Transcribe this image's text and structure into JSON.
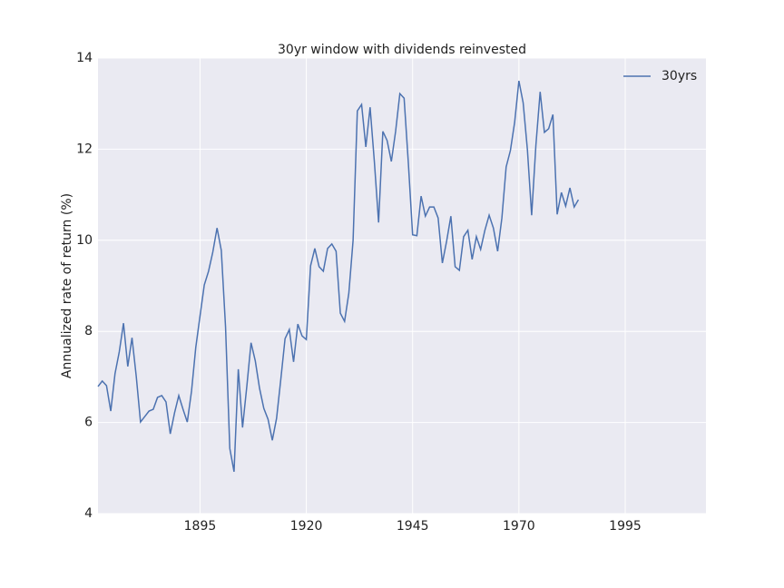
{
  "chart_data": {
    "type": "line",
    "title": "30yr window with dividends reinvested",
    "ylabel": "Annualized rate of return (%)",
    "x": [
      1871,
      1872,
      1873,
      1874,
      1875,
      1876,
      1877,
      1878,
      1879,
      1880,
      1881,
      1882,
      1883,
      1884,
      1885,
      1886,
      1887,
      1888,
      1889,
      1890,
      1891,
      1892,
      1893,
      1894,
      1895,
      1896,
      1897,
      1898,
      1899,
      1900,
      1901,
      1902,
      1903,
      1904,
      1905,
      1906,
      1907,
      1908,
      1909,
      1910,
      1911,
      1912,
      1913,
      1914,
      1915,
      1916,
      1917,
      1918,
      1919,
      1920,
      1921,
      1922,
      1923,
      1924,
      1925,
      1926,
      1927,
      1928,
      1929,
      1930,
      1931,
      1932,
      1933,
      1934,
      1935,
      1936,
      1937,
      1938,
      1939,
      1940,
      1941,
      1942,
      1943,
      1944,
      1945,
      1946,
      1947,
      1948,
      1949,
      1950,
      1951,
      1952,
      1953,
      1954,
      1955,
      1956,
      1957,
      1958,
      1959,
      1960,
      1961,
      1962,
      1963,
      1964,
      1965,
      1966,
      1967,
      1968,
      1969,
      1970,
      1971,
      1972,
      1973,
      1974,
      1975,
      1976,
      1977,
      1978,
      1979,
      1980,
      1981,
      1982,
      1983,
      1984
    ],
    "series": [
      {
        "name": "30yrs",
        "color": "#4c72b0",
        "values": [
          6.79,
          6.91,
          6.81,
          6.25,
          7.07,
          7.55,
          8.18,
          7.23,
          7.86,
          7.01,
          6.01,
          6.13,
          6.25,
          6.29,
          6.55,
          6.59,
          6.45,
          5.75,
          6.21,
          6.59,
          6.29,
          6.01,
          6.69,
          7.65,
          8.34,
          9.02,
          9.32,
          9.74,
          10.27,
          9.78,
          8.1,
          5.43,
          4.92,
          7.17,
          5.89,
          6.79,
          7.75,
          7.35,
          6.75,
          6.31,
          6.07,
          5.61,
          6.09,
          6.95,
          7.84,
          8.04,
          7.33,
          8.16,
          7.9,
          7.82,
          9.44,
          9.82,
          9.42,
          9.32,
          9.82,
          9.92,
          9.76,
          8.4,
          8.22,
          8.84,
          10.0,
          12.84,
          12.98,
          12.05,
          12.92,
          11.73,
          10.39,
          12.39,
          12.19,
          11.73,
          12.39,
          13.22,
          13.12,
          11.69,
          10.12,
          10.1,
          10.97,
          10.53,
          10.73,
          10.73,
          10.49,
          9.5,
          9.98,
          10.53,
          9.42,
          9.34,
          10.08,
          10.22,
          9.58,
          10.08,
          9.8,
          10.22,
          10.55,
          10.27,
          9.76,
          10.49,
          11.61,
          11.97,
          12.59,
          13.5,
          13.02,
          11.99,
          10.55,
          12.09,
          13.26,
          12.37,
          12.45,
          12.76,
          10.57,
          11.05,
          10.75,
          11.15,
          10.73,
          10.89
        ]
      }
    ],
    "xlim": [
      1871,
      2014
    ],
    "xticks": [
      1895,
      1920,
      1945,
      1970,
      1995
    ],
    "ylim": [
      4,
      14
    ],
    "yticks": [
      4,
      6,
      8,
      10,
      12,
      14
    ],
    "grid": true,
    "legend": "upper right"
  }
}
